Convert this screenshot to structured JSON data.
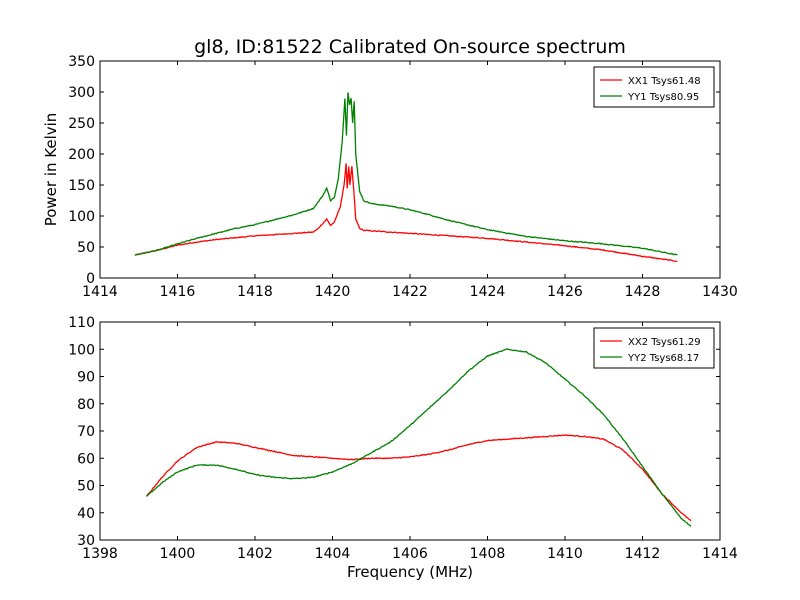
{
  "title": "gl8, ID:81522 Calibrated On-source spectrum",
  "colors": {
    "xx": "#ff0000",
    "yy": "#008000"
  },
  "chart_data": [
    {
      "type": "line",
      "title": "gl8, ID:81522 Calibrated On-source spectrum",
      "xlabel": "",
      "ylabel": "Power in Kelvin",
      "xlim": [
        1414,
        1430
      ],
      "ylim": [
        0,
        350
      ],
      "xticks": [
        1414,
        1416,
        1418,
        1420,
        1422,
        1424,
        1426,
        1428,
        1430
      ],
      "yticks": [
        0,
        50,
        100,
        150,
        200,
        250,
        300,
        350
      ],
      "grid": false,
      "legend_position": "top-right",
      "series": [
        {
          "name": "XX1 Tsys61.48",
          "color": "#ff0000",
          "x": [
            1414.9,
            1415.5,
            1416.0,
            1416.5,
            1417.0,
            1417.5,
            1418.0,
            1418.5,
            1419.0,
            1419.5,
            1419.6,
            1419.75,
            1419.85,
            1419.95,
            1420.05,
            1420.2,
            1420.3,
            1420.35,
            1420.38,
            1420.42,
            1420.45,
            1420.5,
            1420.55,
            1420.6,
            1420.7,
            1420.8,
            1421.0,
            1421.5,
            1422.0,
            1423.0,
            1424.0,
            1425.0,
            1426.0,
            1427.0,
            1428.0,
            1428.9
          ],
          "y": [
            37,
            45,
            53,
            58,
            62,
            65,
            68,
            70,
            72,
            74,
            78,
            88,
            95,
            85,
            90,
            115,
            150,
            185,
            145,
            180,
            150,
            180,
            140,
            95,
            80,
            77,
            76,
            74,
            72,
            68,
            64,
            58,
            52,
            45,
            35,
            27
          ]
        },
        {
          "name": "YY1 Tsys80.95",
          "color": "#008000",
          "x": [
            1414.9,
            1415.5,
            1416.0,
            1416.5,
            1417.0,
            1417.5,
            1418.0,
            1418.5,
            1419.0,
            1419.5,
            1419.6,
            1419.75,
            1419.85,
            1419.95,
            1420.05,
            1420.15,
            1420.25,
            1420.32,
            1420.36,
            1420.4,
            1420.44,
            1420.48,
            1420.52,
            1420.56,
            1420.6,
            1420.7,
            1420.8,
            1421.0,
            1421.5,
            1422.0,
            1422.5,
            1423.0,
            1424.0,
            1425.0,
            1426.0,
            1427.0,
            1428.0,
            1428.9
          ],
          "y": [
            37,
            45,
            55,
            64,
            72,
            80,
            86,
            94,
            102,
            112,
            120,
            133,
            145,
            125,
            130,
            160,
            220,
            290,
            230,
            300,
            280,
            290,
            250,
            285,
            200,
            140,
            125,
            120,
            116,
            110,
            102,
            93,
            78,
            67,
            60,
            55,
            48,
            37
          ]
        }
      ]
    },
    {
      "type": "line",
      "title": "",
      "xlabel": "Frequency (MHz)",
      "ylabel": "",
      "xlim": [
        1398,
        1414
      ],
      "ylim": [
        30,
        110
      ],
      "xticks": [
        1398,
        1400,
        1402,
        1404,
        1406,
        1408,
        1410,
        1412,
        1414
      ],
      "yticks": [
        30,
        40,
        50,
        60,
        70,
        80,
        90,
        100,
        110
      ],
      "grid": false,
      "legend_position": "top-right",
      "series": [
        {
          "name": "XX2 Tsys61.29",
          "color": "#ff0000",
          "x": [
            1399.2,
            1399.6,
            1400.0,
            1400.5,
            1401.0,
            1401.5,
            1402.0,
            1402.5,
            1403.0,
            1403.5,
            1404.0,
            1404.5,
            1405.0,
            1405.5,
            1406.0,
            1406.5,
            1407.0,
            1407.5,
            1408.0,
            1408.5,
            1409.0,
            1409.5,
            1410.0,
            1410.5,
            1411.0,
            1411.5,
            1412.0,
            1412.5,
            1413.0,
            1413.25
          ],
          "y": [
            46,
            53,
            59,
            64,
            66,
            65.5,
            64,
            62.5,
            61,
            60.5,
            60,
            59.5,
            60,
            60,
            60.5,
            61.5,
            63,
            65,
            66.5,
            67,
            67.5,
            68,
            68.5,
            68,
            67,
            63,
            56,
            47,
            40,
            37
          ]
        },
        {
          "name": "YY2 Tsys68.17",
          "color": "#008000",
          "x": [
            1399.2,
            1399.6,
            1400.0,
            1400.5,
            1401.0,
            1401.5,
            1402.0,
            1402.5,
            1403.0,
            1403.5,
            1404.0,
            1404.5,
            1405.0,
            1405.5,
            1406.0,
            1406.5,
            1407.0,
            1407.5,
            1408.0,
            1408.5,
            1409.0,
            1409.5,
            1410.0,
            1410.5,
            1411.0,
            1411.5,
            1412.0,
            1412.5,
            1413.0,
            1413.25
          ],
          "y": [
            46,
            51,
            55,
            57.5,
            57.5,
            56,
            54,
            53,
            52.5,
            53,
            55,
            58,
            62,
            66,
            72,
            78.5,
            85,
            92,
            97.5,
            100,
            99,
            95,
            89,
            83,
            76,
            67,
            57,
            47,
            38,
            35
          ]
        }
      ]
    }
  ]
}
